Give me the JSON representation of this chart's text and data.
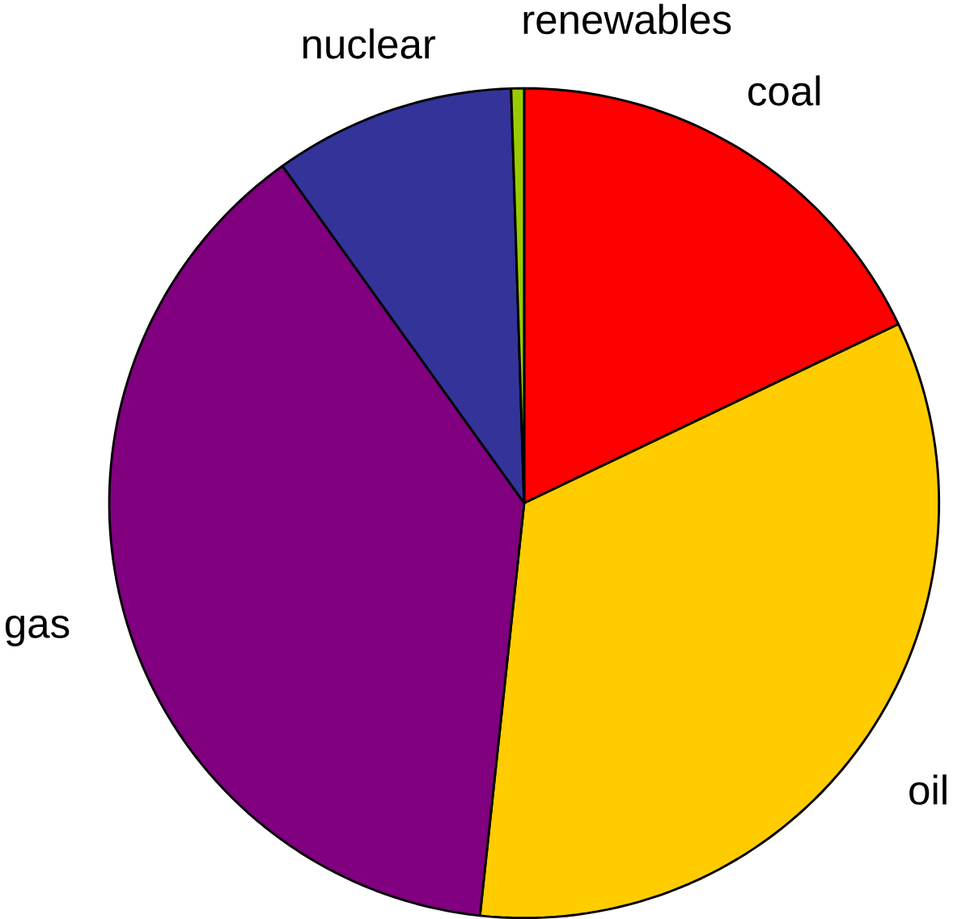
{
  "chart_data": {
    "type": "pie",
    "categories": [
      "coal",
      "oil",
      "gas",
      "nuclear",
      "renewables"
    ],
    "values": [
      17.9,
      33.8,
      38.4,
      9.4,
      0.5
    ],
    "colors": [
      "#ff0000",
      "#ffcc00",
      "#800080",
      "#333399",
      "#99cc00"
    ]
  }
}
